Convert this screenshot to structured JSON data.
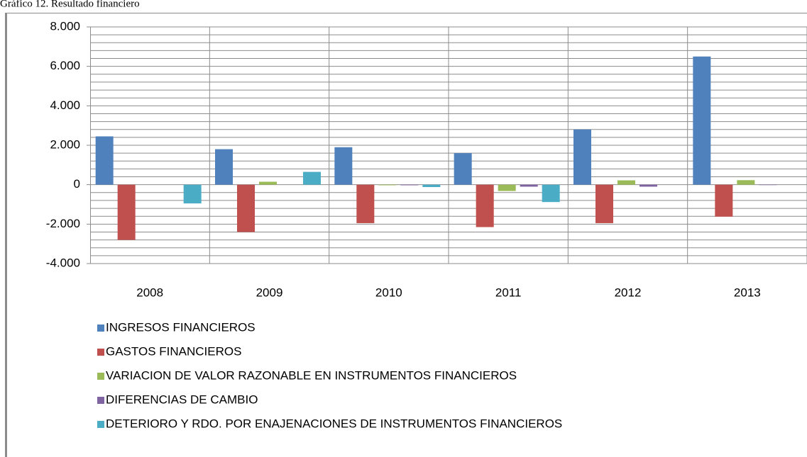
{
  "chart_data": {
    "type": "bar",
    "title": "Gráfico 12. Resultado financiero",
    "categories": [
      "2008",
      "2009",
      "2010",
      "2011",
      "2012",
      "2013"
    ],
    "series": [
      {
        "name": "INGRESOS  FINANCIEROS",
        "color": "#4f81bd",
        "values": [
          2450,
          1800,
          1900,
          1600,
          2800,
          6500
        ]
      },
      {
        "name": "GASTOS  FINANCIEROS",
        "color": "#c0504d",
        "values": [
          -2800,
          -2400,
          -1950,
          -2150,
          -1950,
          -1620
        ]
      },
      {
        "name": "VARIACION DE VALOR RAZONABLE EN INSTRUMENTOS FINANCIEROS",
        "color": "#9bbb59",
        "values": [
          0,
          150,
          -30,
          -320,
          220,
          230
        ]
      },
      {
        "name": "DIFERENCIAS DE CAMBIO",
        "color": "#8064a2",
        "values": [
          0,
          0,
          -30,
          -100,
          -100,
          -20
        ]
      },
      {
        "name": "DETERIORO Y RDO. POR ENAJENACIONES DE INSTRUMENTOS FINANCIEROS",
        "color": "#4bacc6",
        "values": [
          -950,
          650,
          -120,
          -880,
          0,
          0
        ]
      }
    ],
    "ylim": [
      -4000,
      8000
    ],
    "yticks": [
      {
        "value": -4000,
        "label": "-4.000"
      },
      {
        "value": -2000,
        "label": "-2.000"
      },
      0,
      {
        "value": 2000,
        "label": "2.000"
      },
      {
        "value": 4000,
        "label": "4.000"
      },
      {
        "value": 6000,
        "label": "6.000"
      },
      {
        "value": 8000,
        "label": "8.000"
      }
    ],
    "grid": true,
    "legend": "bottom"
  }
}
